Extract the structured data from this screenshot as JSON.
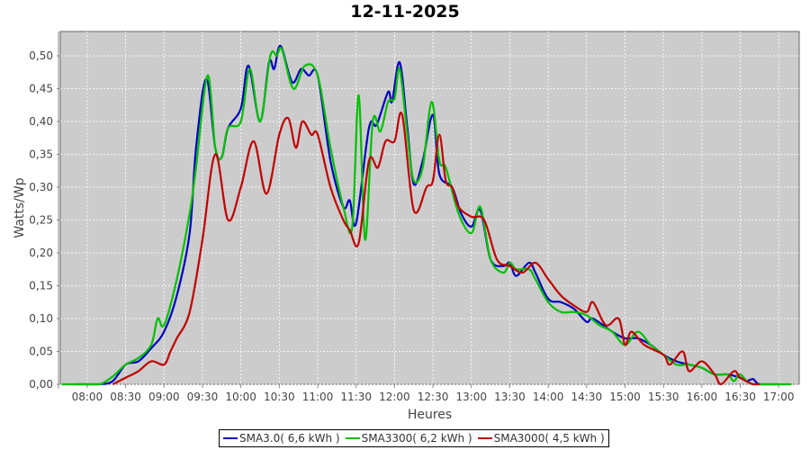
{
  "chart_data": {
    "type": "line",
    "title": "12-11-2025",
    "xlabel": "Heures",
    "ylabel": "Watts/Wp",
    "xlim": [
      "07:39",
      "17:16"
    ],
    "ylim": [
      0,
      0.537
    ],
    "grid": true,
    "legend_position": "bottom",
    "x_ticks": [
      "08:00",
      "08:30",
      "09:00",
      "09:30",
      "10:00",
      "10:30",
      "11:00",
      "11:30",
      "12:00",
      "12:30",
      "13:00",
      "13:30",
      "14:00",
      "14:30",
      "15:00",
      "15:30",
      "16:00",
      "16:30",
      "17:00"
    ],
    "y_ticks": [
      "0,00",
      "0,05",
      "0,10",
      "0,15",
      "0,20",
      "0,25",
      "0,30",
      "0,35",
      "0,40",
      "0,45",
      "0,50"
    ],
    "series": [
      {
        "name": "SMA3.0( 6,6 kWh )",
        "color": "#0000c0",
        "points": [
          [
            "07:50",
            0
          ],
          [
            "08:00",
            0
          ],
          [
            "08:10",
            0
          ],
          [
            "08:20",
            0.005
          ],
          [
            "08:30",
            0.03
          ],
          [
            "08:40",
            0.035
          ],
          [
            "08:50",
            0.055
          ],
          [
            "09:00",
            0.08
          ],
          [
            "09:10",
            0.135
          ],
          [
            "09:20",
            0.23
          ],
          [
            "09:25",
            0.36
          ],
          [
            "09:33",
            0.465
          ],
          [
            "09:40",
            0.36
          ],
          [
            "09:45",
            0.345
          ],
          [
            "09:50",
            0.39
          ],
          [
            "10:00",
            0.42
          ],
          [
            "10:06",
            0.485
          ],
          [
            "10:15",
            0.4
          ],
          [
            "10:22",
            0.49
          ],
          [
            "10:26",
            0.48
          ],
          [
            "10:31",
            0.515
          ],
          [
            "10:40",
            0.46
          ],
          [
            "10:47",
            0.48
          ],
          [
            "10:53",
            0.47
          ],
          [
            "11:00",
            0.47
          ],
          [
            "11:10",
            0.34
          ],
          [
            "11:20",
            0.27
          ],
          [
            "11:25",
            0.28
          ],
          [
            "11:30",
            0.245
          ],
          [
            "11:40",
            0.39
          ],
          [
            "11:46",
            0.395
          ],
          [
            "11:55",
            0.445
          ],
          [
            "11:58",
            0.43
          ],
          [
            "12:04",
            0.49
          ],
          [
            "12:10",
            0.39
          ],
          [
            "12:15",
            0.305
          ],
          [
            "12:22",
            0.34
          ],
          [
            "12:30",
            0.41
          ],
          [
            "12:35",
            0.32
          ],
          [
            "12:45",
            0.3
          ],
          [
            "12:52",
            0.26
          ],
          [
            "13:00",
            0.24
          ],
          [
            "13:07",
            0.265
          ],
          [
            "13:15",
            0.19
          ],
          [
            "13:25",
            0.18
          ],
          [
            "13:30",
            0.185
          ],
          [
            "13:35",
            0.165
          ],
          [
            "13:45",
            0.185
          ],
          [
            "13:50",
            0.17
          ],
          [
            "14:00",
            0.13
          ],
          [
            "14:10",
            0.125
          ],
          [
            "14:20",
            0.115
          ],
          [
            "14:30",
            0.095
          ],
          [
            "14:35",
            0.1
          ],
          [
            "14:50",
            0.08
          ],
          [
            "15:00",
            0.07
          ],
          [
            "15:10",
            0.07
          ],
          [
            "15:20",
            0.06
          ],
          [
            "15:30",
            0.045
          ],
          [
            "15:40",
            0.035
          ],
          [
            "15:50",
            0.03
          ],
          [
            "16:00",
            0.025
          ],
          [
            "16:10",
            0.015
          ],
          [
            "16:20",
            0.015
          ],
          [
            "16:30",
            0.01
          ],
          [
            "16:35",
            0.005
          ],
          [
            "16:40",
            0.008
          ],
          [
            "16:45",
            0
          ],
          [
            "17:00",
            0
          ]
        ]
      },
      {
        "name": "SMA3300( 6,2 kWh )",
        "color": "#00c000",
        "points": [
          [
            "07:40",
            0
          ],
          [
            "08:00",
            0
          ],
          [
            "08:10",
            0
          ],
          [
            "08:20",
            0.012
          ],
          [
            "08:30",
            0.03
          ],
          [
            "08:40",
            0.04
          ],
          [
            "08:50",
            0.06
          ],
          [
            "08:55",
            0.1
          ],
          [
            "09:00",
            0.09
          ],
          [
            "09:10",
            0.16
          ],
          [
            "09:20",
            0.26
          ],
          [
            "09:25",
            0.33
          ],
          [
            "09:34",
            0.47
          ],
          [
            "09:40",
            0.36
          ],
          [
            "09:45",
            0.345
          ],
          [
            "09:50",
            0.39
          ],
          [
            "10:00",
            0.4
          ],
          [
            "10:07",
            0.48
          ],
          [
            "10:15",
            0.4
          ],
          [
            "10:23",
            0.5
          ],
          [
            "10:28",
            0.5
          ],
          [
            "10:32",
            0.51
          ],
          [
            "10:41",
            0.45
          ],
          [
            "10:50",
            0.485
          ],
          [
            "11:00",
            0.47
          ],
          [
            "11:10",
            0.36
          ],
          [
            "11:20",
            0.27
          ],
          [
            "11:27",
            0.24
          ],
          [
            "11:32",
            0.44
          ],
          [
            "11:37",
            0.22
          ],
          [
            "11:43",
            0.4
          ],
          [
            "11:49",
            0.385
          ],
          [
            "11:55",
            0.43
          ],
          [
            "12:00",
            0.435
          ],
          [
            "12:04",
            0.48
          ],
          [
            "12:10",
            0.38
          ],
          [
            "12:15",
            0.31
          ],
          [
            "12:22",
            0.33
          ],
          [
            "12:29",
            0.43
          ],
          [
            "12:35",
            0.34
          ],
          [
            "12:40",
            0.33
          ],
          [
            "12:50",
            0.26
          ],
          [
            "13:00",
            0.23
          ],
          [
            "13:07",
            0.27
          ],
          [
            "13:15",
            0.19
          ],
          [
            "13:25",
            0.17
          ],
          [
            "13:30",
            0.185
          ],
          [
            "13:35",
            0.175
          ],
          [
            "13:45",
            0.175
          ],
          [
            "13:50",
            0.16
          ],
          [
            "14:00",
            0.125
          ],
          [
            "14:10",
            0.11
          ],
          [
            "14:20",
            0.11
          ],
          [
            "14:30",
            0.105
          ],
          [
            "14:40",
            0.09
          ],
          [
            "14:50",
            0.08
          ],
          [
            "15:00",
            0.06
          ],
          [
            "15:10",
            0.08
          ],
          [
            "15:20",
            0.06
          ],
          [
            "15:30",
            0.045
          ],
          [
            "15:40",
            0.03
          ],
          [
            "15:50",
            0.03
          ],
          [
            "16:00",
            0.025
          ],
          [
            "16:10",
            0.015
          ],
          [
            "16:20",
            0.015
          ],
          [
            "16:25",
            0.005
          ],
          [
            "16:30",
            0.015
          ],
          [
            "16:40",
            0
          ],
          [
            "17:10",
            0
          ]
        ]
      },
      {
        "name": "SMA3000( 4,5 kWh )",
        "color": "#c00000",
        "points": [
          [
            "08:20",
            0
          ],
          [
            "08:30",
            0.01
          ],
          [
            "08:40",
            0.02
          ],
          [
            "08:50",
            0.035
          ],
          [
            "09:00",
            0.03
          ],
          [
            "09:05",
            0.05
          ],
          [
            "09:10",
            0.07
          ],
          [
            "09:20",
            0.11
          ],
          [
            "09:30",
            0.22
          ],
          [
            "09:40",
            0.35
          ],
          [
            "09:50",
            0.25
          ],
          [
            "10:00",
            0.3
          ],
          [
            "10:10",
            0.37
          ],
          [
            "10:20",
            0.29
          ],
          [
            "10:30",
            0.38
          ],
          [
            "10:37",
            0.405
          ],
          [
            "10:43",
            0.36
          ],
          [
            "10:48",
            0.4
          ],
          [
            "10:55",
            0.38
          ],
          [
            "11:00",
            0.38
          ],
          [
            "11:10",
            0.3
          ],
          [
            "11:20",
            0.25
          ],
          [
            "11:25",
            0.235
          ],
          [
            "11:32",
            0.215
          ],
          [
            "11:40",
            0.34
          ],
          [
            "11:47",
            0.33
          ],
          [
            "11:53",
            0.37
          ],
          [
            "12:00",
            0.37
          ],
          [
            "12:06",
            0.41
          ],
          [
            "12:15",
            0.265
          ],
          [
            "12:25",
            0.3
          ],
          [
            "12:30",
            0.31
          ],
          [
            "12:35",
            0.38
          ],
          [
            "12:40",
            0.31
          ],
          [
            "12:45",
            0.3
          ],
          [
            "12:50",
            0.27
          ],
          [
            "13:00",
            0.255
          ],
          [
            "13:10",
            0.25
          ],
          [
            "13:20",
            0.19
          ],
          [
            "13:30",
            0.18
          ],
          [
            "13:40",
            0.17
          ],
          [
            "13:50",
            0.185
          ],
          [
            "14:00",
            0.16
          ],
          [
            "14:10",
            0.135
          ],
          [
            "14:20",
            0.12
          ],
          [
            "14:30",
            0.11
          ],
          [
            "14:35",
            0.125
          ],
          [
            "14:45",
            0.09
          ],
          [
            "14:55",
            0.1
          ],
          [
            "15:00",
            0.06
          ],
          [
            "15:05",
            0.08
          ],
          [
            "15:15",
            0.06
          ],
          [
            "15:30",
            0.045
          ],
          [
            "15:35",
            0.03
          ],
          [
            "15:45",
            0.05
          ],
          [
            "15:50",
            0.02
          ],
          [
            "16:00",
            0.035
          ],
          [
            "16:10",
            0.015
          ],
          [
            "16:15",
            0
          ],
          [
            "16:25",
            0.02
          ],
          [
            "16:30",
            0.01
          ],
          [
            "16:40",
            0
          ],
          [
            "16:45",
            0
          ]
        ]
      }
    ]
  }
}
